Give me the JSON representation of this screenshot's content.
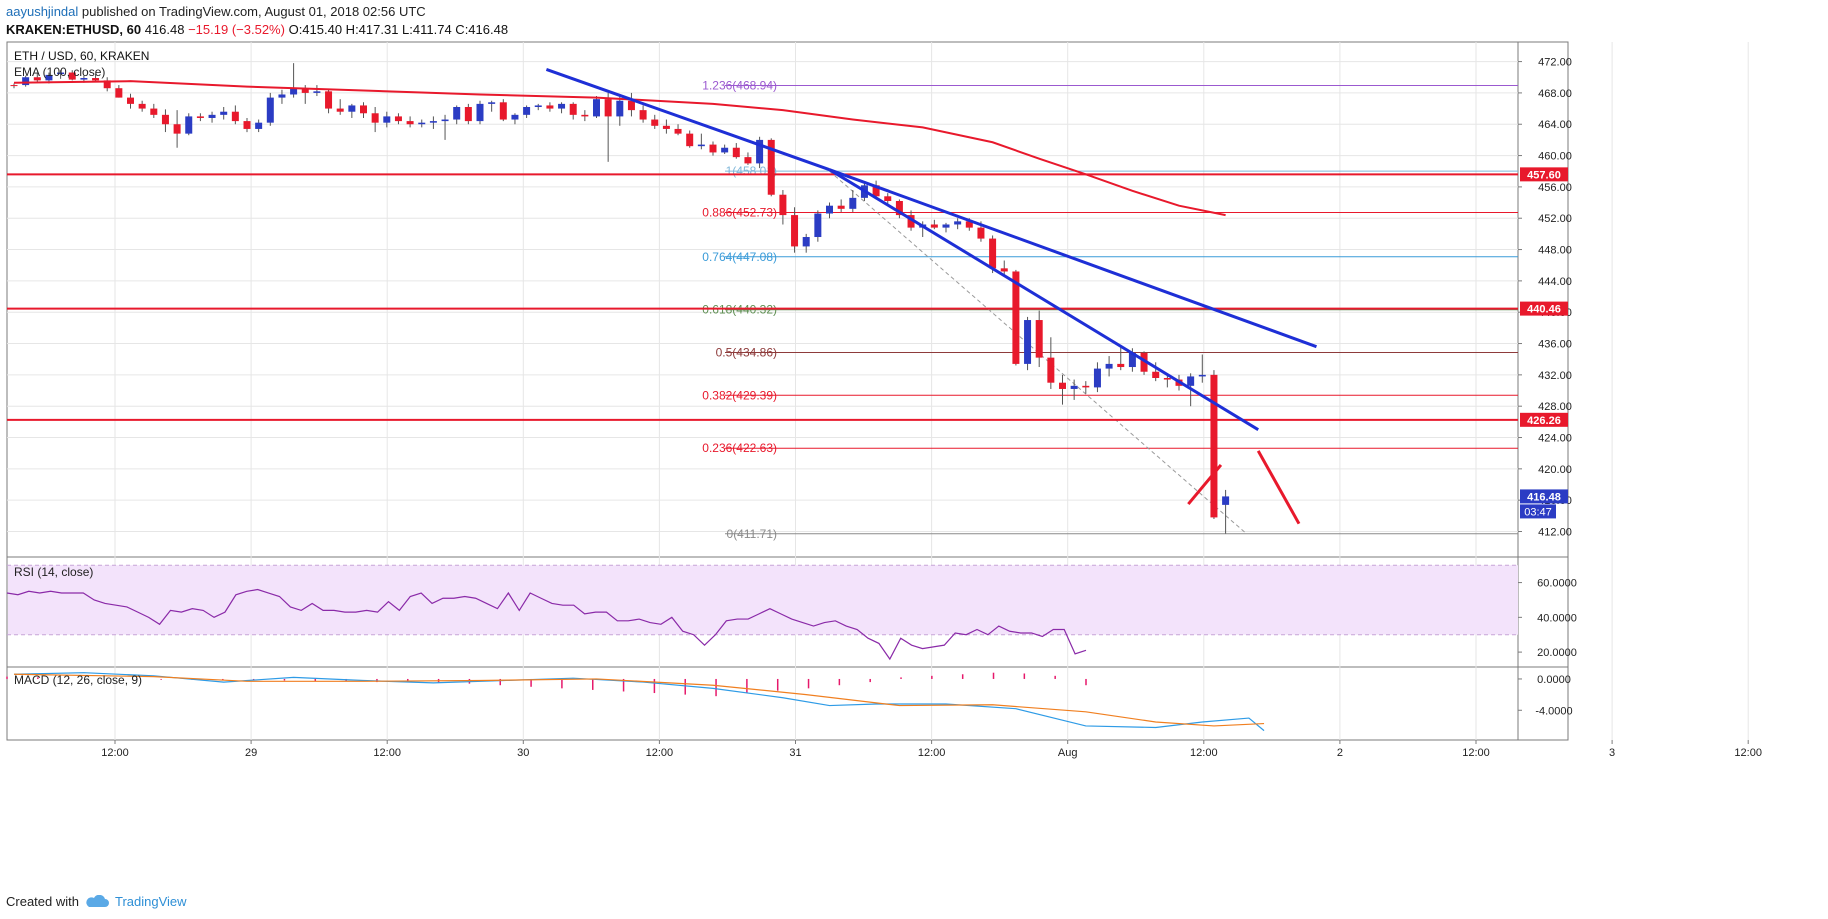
{
  "header": {
    "author": "aayushjindal",
    "published": "published on TradingView.com, August 01, 2018 02:56 UTC",
    "symbol_line": "KRAKEN:ETHUSD, 60",
    "price": "416.48",
    "change": "−15.19 (−3.52%)",
    "ohlc": "O:415.40 H:417.31 L:411.74 C:416.48"
  },
  "footer": {
    "created_with": "Created with",
    "brand": "TradingView"
  },
  "colors": {
    "up": "#2b3cc4",
    "down": "#e8192c",
    "ema": "#e8192c",
    "trend": "#1e2fd6",
    "grid": "#e6e6e6",
    "rsi_fill": "#f3e3fb",
    "rsi_line": "#8a2aa8",
    "macd_line": "#2e9be6",
    "signal_line": "#f07f20",
    "hist": "#e6196b"
  },
  "chart_data": {
    "type": "candlestick",
    "title": "ETH / USD, 60, KRAKEN",
    "indicator_label": "EMA (100, close)",
    "ylim": [
      409,
      474.5
    ],
    "y_ticks": [
      "472.00",
      "468.00",
      "464.00",
      "460.00",
      "456.00",
      "452.00",
      "448.00",
      "444.00",
      "440.00",
      "436.00",
      "432.00",
      "428.00",
      "424.00",
      "420.00",
      "416.00",
      "412.00"
    ],
    "x_ticks": [
      "12:00",
      "29",
      "12:00",
      "30",
      "12:00",
      "31",
      "12:00",
      "Aug",
      "12:00",
      "2",
      "12:00",
      "3",
      "12:00"
    ],
    "candles": [
      [
        469.0,
        469.2,
        468.6,
        468.9
      ],
      [
        469.0,
        470.2,
        468.8,
        470.0
      ],
      [
        470.0,
        470.6,
        469.4,
        469.6
      ],
      [
        469.6,
        470.6,
        469.2,
        470.3
      ],
      [
        470.4,
        470.9,
        469.8,
        470.6
      ],
      [
        470.6,
        470.9,
        469.6,
        469.7
      ],
      [
        469.7,
        470.2,
        469.3,
        469.9
      ],
      [
        469.9,
        470.4,
        469.4,
        469.6
      ],
      [
        469.6,
        470.0,
        468.2,
        468.6
      ],
      [
        468.6,
        469.0,
        467.4,
        467.4
      ],
      [
        467.4,
        467.9,
        466.0,
        466.6
      ],
      [
        466.6,
        467.0,
        465.6,
        466.0
      ],
      [
        466.0,
        466.6,
        464.8,
        465.2
      ],
      [
        465.2,
        465.9,
        463.0,
        464.0
      ],
      [
        464.0,
        465.8,
        461.0,
        462.8
      ],
      [
        462.8,
        465.4,
        462.6,
        465.0
      ],
      [
        465.0,
        465.4,
        464.4,
        464.8
      ],
      [
        464.8,
        465.6,
        464.2,
        465.2
      ],
      [
        465.2,
        466.2,
        464.6,
        465.6
      ],
      [
        465.6,
        466.4,
        464.0,
        464.4
      ],
      [
        464.4,
        464.8,
        463.0,
        463.4
      ],
      [
        463.4,
        464.6,
        463.0,
        464.2
      ],
      [
        464.2,
        468.0,
        463.8,
        467.4
      ],
      [
        467.4,
        468.4,
        466.6,
        467.8
      ],
      [
        467.8,
        471.8,
        467.4,
        468.6
      ],
      [
        468.6,
        469.0,
        466.6,
        468.0
      ],
      [
        468.0,
        469.0,
        467.6,
        468.2
      ],
      [
        468.2,
        468.4,
        465.4,
        466.0
      ],
      [
        466.0,
        467.2,
        465.2,
        465.6
      ],
      [
        465.6,
        466.6,
        464.8,
        466.4
      ],
      [
        466.4,
        466.8,
        464.8,
        465.4
      ],
      [
        465.4,
        466.2,
        463.0,
        464.2
      ],
      [
        464.2,
        465.6,
        463.6,
        465.0
      ],
      [
        465.0,
        465.4,
        464.0,
        464.4
      ],
      [
        464.4,
        465.0,
        463.6,
        464.0
      ],
      [
        464.0,
        464.6,
        463.6,
        464.2
      ],
      [
        464.2,
        465.0,
        463.4,
        464.4
      ],
      [
        464.4,
        465.2,
        462.0,
        464.6
      ],
      [
        464.6,
        466.4,
        464.0,
        466.2
      ],
      [
        466.2,
        466.6,
        464.0,
        464.4
      ],
      [
        464.4,
        467.0,
        464.0,
        466.6
      ],
      [
        466.6,
        467.0,
        465.6,
        466.8
      ],
      [
        466.8,
        467.2,
        464.4,
        464.6
      ],
      [
        464.6,
        465.4,
        464.0,
        465.2
      ],
      [
        465.2,
        466.4,
        464.8,
        466.2
      ],
      [
        466.2,
        466.6,
        465.8,
        466.4
      ],
      [
        466.4,
        466.8,
        465.6,
        466.0
      ],
      [
        466.0,
        466.8,
        465.4,
        466.6
      ],
      [
        466.6,
        466.8,
        464.6,
        465.2
      ],
      [
        465.2,
        465.8,
        464.4,
        465.0
      ],
      [
        465.0,
        467.6,
        464.8,
        467.2
      ],
      [
        467.2,
        468.0,
        459.2,
        465.0
      ],
      [
        465.0,
        467.6,
        463.8,
        467.0
      ],
      [
        467.0,
        468.0,
        465.0,
        465.8
      ],
      [
        465.8,
        466.4,
        464.2,
        464.6
      ],
      [
        464.6,
        465.2,
        463.4,
        463.8
      ],
      [
        463.8,
        464.6,
        462.8,
        463.4
      ],
      [
        463.4,
        464.0,
        462.6,
        462.8
      ],
      [
        462.8,
        463.2,
        461.0,
        461.2
      ],
      [
        461.2,
        462.8,
        460.8,
        461.4
      ],
      [
        461.4,
        461.8,
        460.0,
        460.4
      ],
      [
        460.4,
        461.4,
        460.2,
        461.0
      ],
      [
        461.0,
        461.6,
        459.6,
        459.8
      ],
      [
        459.8,
        460.4,
        458.8,
        459.0
      ],
      [
        459.0,
        462.4,
        458.4,
        462.0
      ],
      [
        462.0,
        462.2,
        454.8,
        455.0
      ],
      [
        455.0,
        455.6,
        451.2,
        452.4
      ],
      [
        452.4,
        453.4,
        447.6,
        448.4
      ],
      [
        448.4,
        450.0,
        447.6,
        449.6
      ],
      [
        449.6,
        453.0,
        449.0,
        452.6
      ],
      [
        452.6,
        454.0,
        452.0,
        453.6
      ],
      [
        453.6,
        454.4,
        452.8,
        453.2
      ],
      [
        453.2,
        455.6,
        452.8,
        454.6
      ],
      [
        454.6,
        456.6,
        454.2,
        456.2
      ],
      [
        456.2,
        456.8,
        454.6,
        454.8
      ],
      [
        454.8,
        455.2,
        453.8,
        454.2
      ],
      [
        454.2,
        454.4,
        452.0,
        452.4
      ],
      [
        452.4,
        453.0,
        450.4,
        450.8
      ],
      [
        450.8,
        451.6,
        449.6,
        451.2
      ],
      [
        451.2,
        451.8,
        450.6,
        450.8
      ],
      [
        450.8,
        451.4,
        450.2,
        451.2
      ],
      [
        451.2,
        452.0,
        450.6,
        451.6
      ],
      [
        451.6,
        452.0,
        450.4,
        450.8
      ],
      [
        450.8,
        451.6,
        449.0,
        449.4
      ],
      [
        449.4,
        449.8,
        445.0,
        445.6
      ],
      [
        445.6,
        446.6,
        444.8,
        445.2
      ],
      [
        445.2,
        445.4,
        433.2,
        433.4
      ],
      [
        433.4,
        439.4,
        432.6,
        439.0
      ],
      [
        439.0,
        440.2,
        433.0,
        434.2
      ],
      [
        434.2,
        436.8,
        430.2,
        431.0
      ],
      [
        431.0,
        432.0,
        428.2,
        430.2
      ],
      [
        430.2,
        431.4,
        428.8,
        430.6
      ],
      [
        430.6,
        431.2,
        429.6,
        430.4
      ],
      [
        430.4,
        433.6,
        429.8,
        432.8
      ],
      [
        432.8,
        434.4,
        431.8,
        433.4
      ],
      [
        433.4,
        435.6,
        432.6,
        433.0
      ],
      [
        433.0,
        435.4,
        432.4,
        434.8
      ],
      [
        434.8,
        435.0,
        432.0,
        432.4
      ],
      [
        432.4,
        433.6,
        431.2,
        431.6
      ],
      [
        431.6,
        432.2,
        430.4,
        431.4
      ],
      [
        431.4,
        432.0,
        430.0,
        430.6
      ],
      [
        430.6,
        432.2,
        428.0,
        431.8
      ],
      [
        431.8,
        434.6,
        431.0,
        432.0
      ],
      [
        432.0,
        432.6,
        413.6,
        413.8
      ],
      [
        415.4,
        417.31,
        411.74,
        416.48
      ]
    ],
    "ema": [
      [
        0,
        469.3
      ],
      [
        10,
        469.5
      ],
      [
        20,
        468.8
      ],
      [
        30,
        468.3
      ],
      [
        40,
        467.8
      ],
      [
        50,
        467.4
      ],
      [
        60,
        466.6
      ],
      [
        66,
        465.8
      ],
      [
        72,
        464.6
      ],
      [
        78,
        463.6
      ],
      [
        84,
        461.7
      ],
      [
        88,
        459.6
      ],
      [
        92,
        457.6
      ],
      [
        96,
        455.5
      ],
      [
        100,
        453.6
      ],
      [
        104,
        452.4
      ]
    ],
    "fibonacci": [
      {
        "label": "1.236(468.94)",
        "value": 468.94,
        "color": "#9b59d0"
      },
      {
        "label": "1(458.01)",
        "value": 458.01,
        "color": "#7fb7d9"
      },
      {
        "label": "0.886(452.73)",
        "value": 452.73,
        "color": "#e8192c"
      },
      {
        "label": "0.764(447.08)",
        "value": 447.08,
        "color": "#3a9bd8"
      },
      {
        "label": "0.618(440.32)",
        "value": 440.32,
        "color": "#5e8f52"
      },
      {
        "label": "0.5(434.86)",
        "value": 434.86,
        "color": "#8e3b3b"
      },
      {
        "label": "0.382(429.39)",
        "value": 429.39,
        "color": "#e8192c"
      },
      {
        "label": "0.236(422.63)",
        "value": 422.63,
        "color": "#e8192c"
      },
      {
        "label": "0(411.71)",
        "value": 411.71,
        "color": "#8a8a8a"
      }
    ],
    "horizontal_levels": [
      {
        "label": "457.60",
        "value": 457.6
      },
      {
        "label": "440.46",
        "value": 440.46
      },
      {
        "label": "426.26",
        "value": 426.26
      }
    ],
    "last_price_label": "416.48",
    "countdown_label": "03:47",
    "trendlines": [
      {
        "from": [
          45.7,
          471.0
        ],
        "to": [
          70.0,
          458.2
        ]
      },
      {
        "from": [
          70.0,
          458.2
        ],
        "to": [
          106.8,
          425.0
        ]
      },
      {
        "from": [
          70.0,
          458.2
        ],
        "to": [
          111.8,
          435.6
        ]
      }
    ],
    "projection": [
      {
        "from": [
          100.8,
          415.5
        ],
        "to": [
          103.6,
          420.5
        ]
      },
      {
        "from": [
          106.8,
          422.3
        ],
        "to": [
          110.3,
          413.0
        ]
      }
    ],
    "fib_line": {
      "from": [
        70.0,
        458.01
      ],
      "to": [
        105.8,
        411.71
      ]
    },
    "rsi": {
      "label": "RSI (14, close)",
      "ylim": [
        12,
        73
      ],
      "band": [
        30,
        70
      ],
      "ticks": [
        "60.0000",
        "40.0000",
        "20.0000"
      ],
      "values": [
        54,
        53,
        55,
        54,
        55,
        54,
        54,
        54,
        50,
        48,
        47,
        46,
        43,
        40,
        36,
        44,
        43,
        45,
        44,
        40,
        43,
        53,
        55,
        56,
        54,
        52,
        46,
        44,
        48,
        44,
        44,
        43,
        43,
        44,
        43,
        49,
        44,
        52,
        54,
        48,
        51,
        51,
        52,
        51,
        48,
        45,
        54,
        44,
        54,
        51,
        48,
        47,
        47,
        42,
        43,
        43,
        38,
        38,
        39,
        37,
        36,
        40,
        32,
        30,
        24,
        30,
        38,
        39,
        39,
        42,
        45,
        42,
        39,
        37,
        35,
        37,
        38,
        35,
        33,
        28,
        25,
        16,
        28,
        24,
        22,
        23,
        24,
        31,
        30,
        33,
        30,
        35,
        32,
        31,
        31,
        29,
        33,
        33,
        19,
        21
      ]
    },
    "macd": {
      "label": "MACD (12, 26, close, 9)",
      "ylim": [
        -7.8,
        1.4
      ],
      "ticks": [
        "0.0000",
        "-4.0000"
      ],
      "macd": [
        [
          0,
          0.6
        ],
        [
          6,
          0.8
        ],
        [
          12,
          0.4
        ],
        [
          18,
          -0.4
        ],
        [
          24,
          0.2
        ],
        [
          30,
          -0.2
        ],
        [
          36,
          -0.5
        ],
        [
          42,
          -0.2
        ],
        [
          48,
          0.1
        ],
        [
          54,
          -0.4
        ],
        [
          60,
          -1.2
        ],
        [
          66,
          -2.4
        ],
        [
          70,
          -3.4
        ],
        [
          74,
          -3.2
        ],
        [
          80,
          -3.2
        ],
        [
          86,
          -3.8
        ],
        [
          92,
          -6.0
        ],
        [
          98,
          -6.2
        ],
        [
          102,
          -5.5
        ],
        [
          106,
          -5.0
        ],
        [
          107.3,
          -6.6
        ]
      ],
      "signal": [
        [
          0,
          0.6
        ],
        [
          12,
          0.3
        ],
        [
          20,
          -0.3
        ],
        [
          30,
          -0.3
        ],
        [
          40,
          -0.2
        ],
        [
          50,
          0.0
        ],
        [
          60,
          -0.8
        ],
        [
          68,
          -2.0
        ],
        [
          76,
          -3.4
        ],
        [
          84,
          -3.3
        ],
        [
          92,
          -4.2
        ],
        [
          98,
          -5.5
        ],
        [
          103,
          -6.0
        ],
        [
          107.3,
          -5.7
        ]
      ],
      "hist": [
        0.3,
        0.2,
        0.1,
        0,
        0,
        -0.1,
        -0.1,
        -0.2,
        -0.2,
        -0.2,
        -0.3,
        -0.3,
        -0.4,
        -0.4,
        -0.5,
        -0.6,
        -0.8,
        -1.0,
        -1.2,
        -1.4,
        -1.6,
        -1.8,
        -2.0,
        -2.2,
        -1.8,
        -1.5,
        -1.2,
        -0.8,
        -0.4,
        0.2,
        0.4,
        0.6,
        0.8,
        0.7,
        0.4,
        -0.8
      ]
    }
  }
}
